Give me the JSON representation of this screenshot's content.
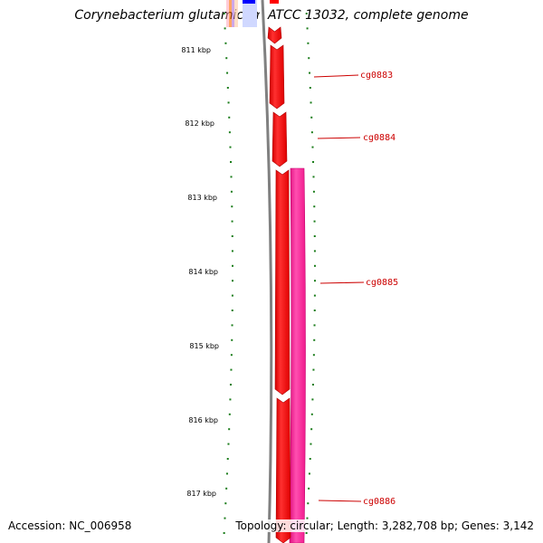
{
  "title": "Corynebacterium glutamicum ATCC 13032, complete genome",
  "footer": {
    "accession": "Accession: NC_006958",
    "topology": "Topology: circular; Length: 3,282,708 bp; Genes: 3,142"
  },
  "colors": {
    "forward_gene": "#ff0000",
    "feature_track": "#ff2a9a",
    "backbone": "#808080",
    "tick": "#1b7d1b",
    "gene_label": "#cc0000"
  },
  "position_markers": [
    {
      "label": "811 kbp",
      "kbp": 811
    },
    {
      "label": "812 kbp",
      "kbp": 812
    },
    {
      "label": "813 kbp",
      "kbp": 813
    },
    {
      "label": "814 kbp",
      "kbp": 814
    },
    {
      "label": "815 kbp",
      "kbp": 815
    },
    {
      "label": "816 kbp",
      "kbp": 816
    },
    {
      "label": "817 kbp",
      "kbp": 817
    }
  ],
  "genes": [
    {
      "name": "cg0883"
    },
    {
      "name": "cg0884"
    },
    {
      "name": "cg0885"
    },
    {
      "name": "cg0886"
    }
  ]
}
